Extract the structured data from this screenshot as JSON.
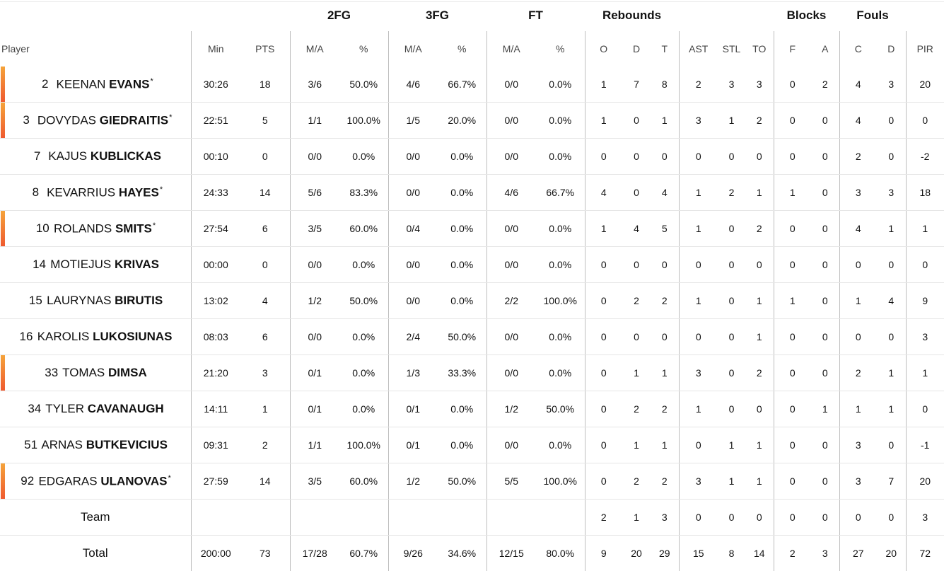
{
  "groups": {
    "two_fg": "2FG",
    "three_fg": "3FG",
    "ft": "FT",
    "rebounds": "Rebounds",
    "blocks": "Blocks",
    "fouls": "Fouls"
  },
  "columns": {
    "player": "Player",
    "min": "Min",
    "pts": "PTS",
    "fg2_ma": "M/A",
    "fg2_pct": "%",
    "fg3_ma": "M/A",
    "fg3_pct": "%",
    "ft_ma": "M/A",
    "ft_pct": "%",
    "reb_o": "O",
    "reb_d": "D",
    "reb_t": "T",
    "ast": "AST",
    "stl": "STL",
    "to": "TO",
    "blk_f": "F",
    "blk_a": "A",
    "foul_c": "C",
    "foul_d": "D",
    "pir": "PIR"
  },
  "accent_color": "#f26b2f",
  "players": [
    {
      "num": "2",
      "first": "KEENAN",
      "last": "EVANS",
      "starter": true,
      "star": "*",
      "min": "30:26",
      "pts": "18",
      "fg2_ma": "3/6",
      "fg2_pct": "50.0%",
      "fg3_ma": "4/6",
      "fg3_pct": "66.7%",
      "ft_ma": "0/0",
      "ft_pct": "0.0%",
      "reb_o": "1",
      "reb_d": "7",
      "reb_t": "8",
      "ast": "2",
      "stl": "3",
      "to": "3",
      "blk_f": "0",
      "blk_a": "2",
      "foul_c": "4",
      "foul_d": "3",
      "pir": "20"
    },
    {
      "num": "3",
      "first": "DOVYDAS",
      "last": "GIEDRAITIS",
      "starter": true,
      "star": "*",
      "min": "22:51",
      "pts": "5",
      "fg2_ma": "1/1",
      "fg2_pct": "100.0%",
      "fg3_ma": "1/5",
      "fg3_pct": "20.0%",
      "ft_ma": "0/0",
      "ft_pct": "0.0%",
      "reb_o": "1",
      "reb_d": "0",
      "reb_t": "1",
      "ast": "3",
      "stl": "1",
      "to": "2",
      "blk_f": "0",
      "blk_a": "0",
      "foul_c": "4",
      "foul_d": "0",
      "pir": "0"
    },
    {
      "num": "7",
      "first": "KAJUS",
      "last": "KUBLICKAS",
      "starter": false,
      "star": "",
      "min": "00:10",
      "pts": "0",
      "fg2_ma": "0/0",
      "fg2_pct": "0.0%",
      "fg3_ma": "0/0",
      "fg3_pct": "0.0%",
      "ft_ma": "0/0",
      "ft_pct": "0.0%",
      "reb_o": "0",
      "reb_d": "0",
      "reb_t": "0",
      "ast": "0",
      "stl": "0",
      "to": "0",
      "blk_f": "0",
      "blk_a": "0",
      "foul_c": "2",
      "foul_d": "0",
      "pir": "-2"
    },
    {
      "num": "8",
      "first": "KEVARRIUS",
      "last": "HAYES",
      "starter": false,
      "star": "*",
      "min": "24:33",
      "pts": "14",
      "fg2_ma": "5/6",
      "fg2_pct": "83.3%",
      "fg3_ma": "0/0",
      "fg3_pct": "0.0%",
      "ft_ma": "4/6",
      "ft_pct": "66.7%",
      "reb_o": "4",
      "reb_d": "0",
      "reb_t": "4",
      "ast": "1",
      "stl": "2",
      "to": "1",
      "blk_f": "1",
      "blk_a": "0",
      "foul_c": "3",
      "foul_d": "3",
      "pir": "18"
    },
    {
      "num": "10",
      "first": "ROLANDS",
      "last": "SMITS",
      "starter": true,
      "star": "*",
      "min": "27:54",
      "pts": "6",
      "fg2_ma": "3/5",
      "fg2_pct": "60.0%",
      "fg3_ma": "0/4",
      "fg3_pct": "0.0%",
      "ft_ma": "0/0",
      "ft_pct": "0.0%",
      "reb_o": "1",
      "reb_d": "4",
      "reb_t": "5",
      "ast": "1",
      "stl": "0",
      "to": "2",
      "blk_f": "0",
      "blk_a": "0",
      "foul_c": "4",
      "foul_d": "1",
      "pir": "1"
    },
    {
      "num": "14",
      "first": "MOTIEJUS",
      "last": "KRIVAS",
      "starter": false,
      "star": "",
      "min": "00:00",
      "pts": "0",
      "fg2_ma": "0/0",
      "fg2_pct": "0.0%",
      "fg3_ma": "0/0",
      "fg3_pct": "0.0%",
      "ft_ma": "0/0",
      "ft_pct": "0.0%",
      "reb_o": "0",
      "reb_d": "0",
      "reb_t": "0",
      "ast": "0",
      "stl": "0",
      "to": "0",
      "blk_f": "0",
      "blk_a": "0",
      "foul_c": "0",
      "foul_d": "0",
      "pir": "0"
    },
    {
      "num": "15",
      "first": "LAURYNAS",
      "last": "BIRUTIS",
      "starter": false,
      "star": "",
      "min": "13:02",
      "pts": "4",
      "fg2_ma": "1/2",
      "fg2_pct": "50.0%",
      "fg3_ma": "0/0",
      "fg3_pct": "0.0%",
      "ft_ma": "2/2",
      "ft_pct": "100.0%",
      "reb_o": "0",
      "reb_d": "2",
      "reb_t": "2",
      "ast": "1",
      "stl": "0",
      "to": "1",
      "blk_f": "1",
      "blk_a": "0",
      "foul_c": "1",
      "foul_d": "4",
      "pir": "9"
    },
    {
      "num": "16",
      "first": "KAROLIS",
      "last": "LUKOSIUNAS",
      "starter": false,
      "star": "",
      "min": "08:03",
      "pts": "6",
      "fg2_ma": "0/0",
      "fg2_pct": "0.0%",
      "fg3_ma": "2/4",
      "fg3_pct": "50.0%",
      "ft_ma": "0/0",
      "ft_pct": "0.0%",
      "reb_o": "0",
      "reb_d": "0",
      "reb_t": "0",
      "ast": "0",
      "stl": "0",
      "to": "1",
      "blk_f": "0",
      "blk_a": "0",
      "foul_c": "0",
      "foul_d": "0",
      "pir": "3"
    },
    {
      "num": "33",
      "first": "TOMAS",
      "last": "DIMSA",
      "starter": true,
      "star": "",
      "min": "21:20",
      "pts": "3",
      "fg2_ma": "0/1",
      "fg2_pct": "0.0%",
      "fg3_ma": "1/3",
      "fg3_pct": "33.3%",
      "ft_ma": "0/0",
      "ft_pct": "0.0%",
      "reb_o": "0",
      "reb_d": "1",
      "reb_t": "1",
      "ast": "3",
      "stl": "0",
      "to": "2",
      "blk_f": "0",
      "blk_a": "0",
      "foul_c": "2",
      "foul_d": "1",
      "pir": "1"
    },
    {
      "num": "34",
      "first": "TYLER",
      "last": "CAVANAUGH",
      "starter": false,
      "star": "",
      "min": "14:11",
      "pts": "1",
      "fg2_ma": "0/1",
      "fg2_pct": "0.0%",
      "fg3_ma": "0/1",
      "fg3_pct": "0.0%",
      "ft_ma": "1/2",
      "ft_pct": "50.0%",
      "reb_o": "0",
      "reb_d": "2",
      "reb_t": "2",
      "ast": "1",
      "stl": "0",
      "to": "0",
      "blk_f": "0",
      "blk_a": "1",
      "foul_c": "1",
      "foul_d": "1",
      "pir": "0"
    },
    {
      "num": "51",
      "first": "ARNAS",
      "last": "BUTKEVICIUS",
      "starter": false,
      "star": "",
      "min": "09:31",
      "pts": "2",
      "fg2_ma": "1/1",
      "fg2_pct": "100.0%",
      "fg3_ma": "0/1",
      "fg3_pct": "0.0%",
      "ft_ma": "0/0",
      "ft_pct": "0.0%",
      "reb_o": "0",
      "reb_d": "1",
      "reb_t": "1",
      "ast": "0",
      "stl": "1",
      "to": "1",
      "blk_f": "0",
      "blk_a": "0",
      "foul_c": "3",
      "foul_d": "0",
      "pir": "-1"
    },
    {
      "num": "92",
      "first": "EDGARAS",
      "last": "ULANOVAS",
      "starter": true,
      "star": "*",
      "min": "27:59",
      "pts": "14",
      "fg2_ma": "3/5",
      "fg2_pct": "60.0%",
      "fg3_ma": "1/2",
      "fg3_pct": "50.0%",
      "ft_ma": "5/5",
      "ft_pct": "100.0%",
      "reb_o": "0",
      "reb_d": "2",
      "reb_t": "2",
      "ast": "3",
      "stl": "1",
      "to": "1",
      "blk_f": "0",
      "blk_a": "0",
      "foul_c": "3",
      "foul_d": "7",
      "pir": "20"
    }
  ],
  "team": {
    "label": "Team",
    "min": "",
    "pts": "",
    "fg2_ma": "",
    "fg2_pct": "",
    "fg3_ma": "",
    "fg3_pct": "",
    "ft_ma": "",
    "ft_pct": "",
    "reb_o": "2",
    "reb_d": "1",
    "reb_t": "3",
    "ast": "0",
    "stl": "0",
    "to": "0",
    "blk_f": "0",
    "blk_a": "0",
    "foul_c": "0",
    "foul_d": "0",
    "pir": "3"
  },
  "total": {
    "label": "Total",
    "min": "200:00",
    "pts": "73",
    "fg2_ma": "17/28",
    "fg2_pct": "60.7%",
    "fg3_ma": "9/26",
    "fg3_pct": "34.6%",
    "ft_ma": "12/15",
    "ft_pct": "80.0%",
    "reb_o": "9",
    "reb_d": "20",
    "reb_t": "29",
    "ast": "15",
    "stl": "8",
    "to": "14",
    "blk_f": "2",
    "blk_a": "3",
    "foul_c": "27",
    "foul_d": "20",
    "pir": "72"
  }
}
